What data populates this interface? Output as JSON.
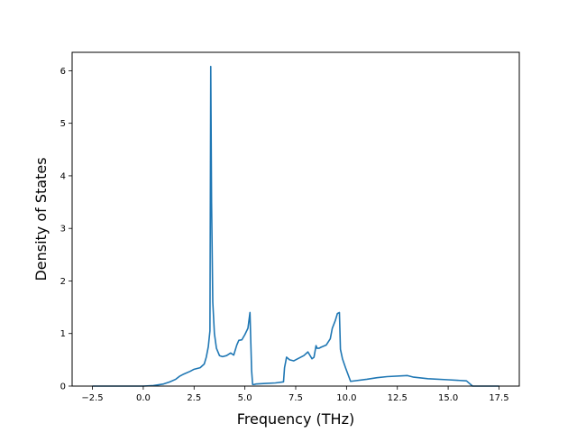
{
  "chart_data": {
    "type": "line",
    "title": "",
    "xlabel": "Frequency (THz)",
    "ylabel": "Density of States",
    "xlim": [
      -3.5,
      18.5
    ],
    "ylim": [
      0,
      6.35
    ],
    "grid": false,
    "x_ticks": [
      -2.5,
      0.0,
      2.5,
      5.0,
      7.5,
      10.0,
      12.5,
      15.0,
      17.5
    ],
    "x_tick_labels": [
      "−2.5",
      "0.0",
      "2.5",
      "5.0",
      "7.5",
      "10.0",
      "12.5",
      "15.0",
      "17.5"
    ],
    "y_ticks": [
      0,
      1,
      2,
      3,
      4,
      5,
      6
    ],
    "y_tick_labels": [
      "0",
      "1",
      "2",
      "3",
      "4",
      "5",
      "6"
    ],
    "series": [
      {
        "color": "#1f77b4",
        "x": [
          -2.5,
          -1.0,
          0.0,
          0.5,
          1.0,
          1.3,
          1.6,
          1.8,
          2.0,
          2.3,
          2.5,
          2.8,
          3.0,
          3.1,
          3.2,
          3.28,
          3.32,
          3.36,
          3.42,
          3.5,
          3.6,
          3.75,
          3.9,
          4.1,
          4.3,
          4.45,
          4.6,
          4.7,
          4.85,
          5.0,
          5.15,
          5.25,
          5.33,
          5.38,
          5.45,
          5.55,
          6.0,
          6.5,
          6.9,
          6.95,
          7.05,
          7.2,
          7.4,
          7.6,
          7.9,
          8.1,
          8.3,
          8.4,
          8.5,
          8.55,
          8.65,
          8.75,
          9.0,
          9.2,
          9.3,
          9.45,
          9.55,
          9.65,
          9.7,
          9.8,
          9.95,
          10.2,
          11.0,
          11.5,
          12.0,
          13.0,
          13.3,
          14.0,
          15.0,
          15.9,
          16.2,
          17.0,
          17.5
        ],
        "y": [
          0.0,
          0.0,
          0.0,
          0.01,
          0.04,
          0.08,
          0.13,
          0.19,
          0.23,
          0.28,
          0.32,
          0.35,
          0.42,
          0.55,
          0.75,
          1.05,
          6.08,
          3.5,
          1.6,
          1.0,
          0.72,
          0.58,
          0.56,
          0.58,
          0.63,
          0.59,
          0.78,
          0.87,
          0.88,
          0.98,
          1.1,
          1.4,
          0.3,
          0.03,
          0.03,
          0.04,
          0.05,
          0.06,
          0.08,
          0.35,
          0.55,
          0.5,
          0.48,
          0.52,
          0.58,
          0.65,
          0.52,
          0.55,
          0.77,
          0.72,
          0.72,
          0.74,
          0.78,
          0.9,
          1.1,
          1.25,
          1.38,
          1.4,
          0.7,
          0.52,
          0.35,
          0.09,
          0.13,
          0.16,
          0.18,
          0.2,
          0.17,
          0.14,
          0.12,
          0.1,
          0.0,
          0.0,
          0.0
        ]
      }
    ]
  }
}
